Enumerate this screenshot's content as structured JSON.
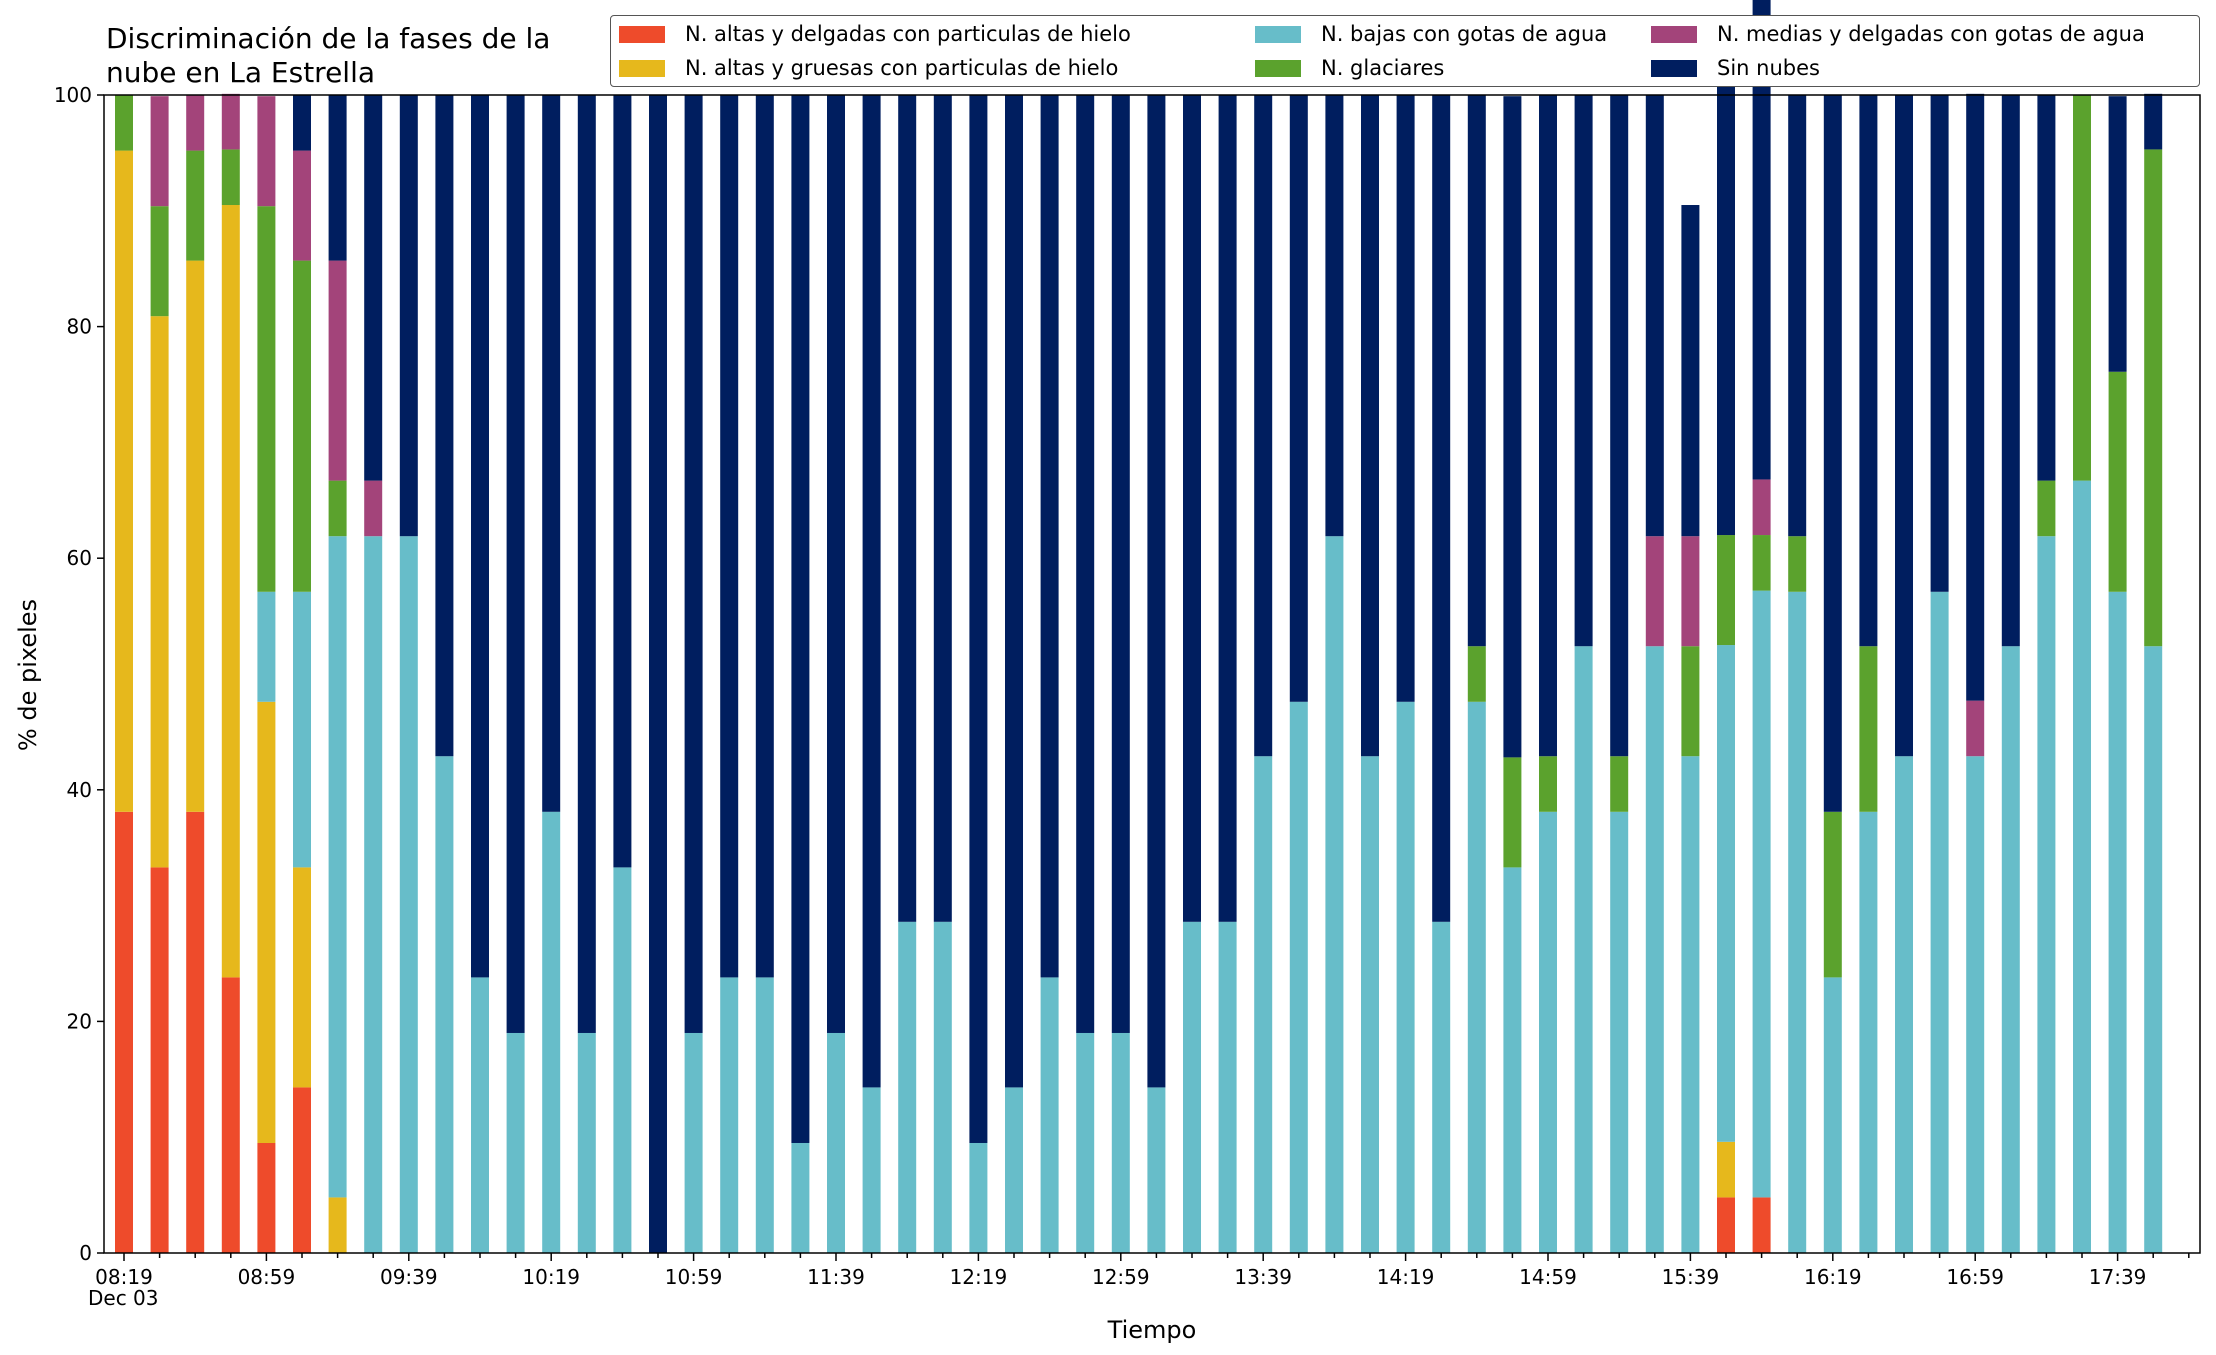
{
  "chart_data": {
    "type": "bar",
    "stacked": true,
    "title_line1": "Discriminación de la fases de la",
    "title_line2": "nube en La Estrella",
    "xlabel": "Tiempo",
    "ylabel": "% de pixeles",
    "date_label": "Dec 03",
    "ylim": [
      0,
      100
    ],
    "yticks": [
      "0",
      "20",
      "40",
      "60",
      "80",
      "100"
    ],
    "xtick_labels": [
      "08:19",
      "08:59",
      "09:39",
      "10:19",
      "10:59",
      "11:39",
      "12:19",
      "12:59",
      "13:39",
      "14:19",
      "14:59",
      "15:39",
      "16:19",
      "16:59",
      "17:39"
    ],
    "grid": false,
    "legend_position": "top-right",
    "series": [
      {
        "name": "N. altas y delgadas con particulas de hielo",
        "color": "#ee4b2b",
        "values": [
          38.1,
          33.3,
          38.1,
          23.8,
          9.5,
          14.3,
          0,
          0,
          0,
          0,
          0,
          0,
          0,
          0,
          0,
          0,
          0,
          0,
          0,
          0,
          0,
          0,
          0,
          0,
          0,
          0,
          0,
          0,
          0,
          0,
          0,
          0,
          0,
          0,
          0,
          0,
          0,
          0,
          0,
          0,
          0,
          0,
          0,
          0,
          0,
          4.8,
          4.8,
          0,
          0,
          0,
          0,
          0,
          0,
          0,
          0,
          0,
          0,
          0
        ]
      },
      {
        "name": "N. altas y gruesas con particulas de hielo",
        "color": "#e6b81c",
        "values": [
          57.1,
          47.6,
          47.6,
          66.7,
          38.1,
          19.0,
          4.8,
          0,
          0,
          0,
          0,
          0,
          0,
          0,
          0,
          0,
          0,
          0,
          0,
          0,
          0,
          0,
          0,
          0,
          0,
          0,
          0,
          0,
          0,
          0,
          0,
          0,
          0,
          0,
          0,
          0,
          0,
          0,
          0,
          0,
          0,
          0,
          0,
          0,
          0,
          4.8,
          0,
          0,
          0,
          0,
          0,
          0,
          0,
          0,
          0,
          0,
          0,
          0
        ]
      },
      {
        "name": "N. bajas con gotas de agua",
        "color": "#67bdc9",
        "values": [
          0,
          0,
          0,
          0,
          9.5,
          23.8,
          57.1,
          61.9,
          61.9,
          42.9,
          23.8,
          19.0,
          38.1,
          19.0,
          33.3,
          0,
          19.0,
          23.8,
          23.8,
          9.5,
          19.0,
          14.3,
          28.6,
          28.6,
          9.5,
          14.3,
          23.8,
          19.0,
          19.0,
          14.3,
          28.6,
          28.6,
          42.9,
          47.6,
          61.9,
          42.9,
          47.6,
          28.6,
          47.6,
          33.3,
          38.1,
          52.4,
          38.1,
          52.4,
          42.9,
          42.9,
          52.4,
          57.1,
          23.8,
          38.1,
          42.9,
          57.1,
          42.9,
          52.4,
          61.9,
          66.7,
          57.1,
          52.4
        ]
      },
      {
        "name": "N. glaciares",
        "color": "#5ba22d",
        "values": [
          4.8,
          9.5,
          9.5,
          4.8,
          33.3,
          28.6,
          4.8,
          0,
          0,
          0,
          0,
          0,
          0,
          0,
          0,
          0,
          0,
          0,
          0,
          0,
          0,
          0,
          0,
          0,
          0,
          0,
          0,
          0,
          0,
          0,
          0,
          0,
          0,
          0,
          0,
          0,
          0,
          0,
          4.8,
          9.5,
          4.8,
          0,
          4.8,
          0,
          9.5,
          9.5,
          4.8,
          4.8,
          14.3,
          14.3,
          0,
          0,
          0,
          0,
          4.8,
          33.3,
          19.0,
          42.9
        ]
      },
      {
        "name": "N. medias y delgadas con gotas de agua",
        "color": "#a3447a",
        "values": [
          0,
          9.5,
          4.8,
          4.8,
          9.5,
          9.5,
          19.0,
          4.8,
          0,
          0,
          0,
          0,
          0,
          0,
          0,
          0,
          0,
          0,
          0,
          0,
          0,
          0,
          0,
          0,
          0,
          0,
          0,
          0,
          0,
          0,
          0,
          0,
          0,
          0,
          0,
          0,
          0,
          0,
          0,
          0,
          0,
          0,
          0,
          9.5,
          9.5,
          0,
          4.8,
          0,
          0,
          0,
          0,
          0,
          4.8,
          0,
          0,
          0,
          0,
          0
        ]
      },
      {
        "name": "Sin nubes",
        "color": "#001e5f",
        "values": [
          0,
          0,
          0,
          0,
          0,
          4.8,
          14.3,
          33.3,
          38.1,
          57.1,
          76.2,
          81.0,
          61.9,
          81.0,
          66.7,
          100,
          81.0,
          76.2,
          76.2,
          90.5,
          81.0,
          85.7,
          71.4,
          71.4,
          90.5,
          85.7,
          76.2,
          81.0,
          81.0,
          85.7,
          71.4,
          71.4,
          57.1,
          52.4,
          38.1,
          57.1,
          52.4,
          71.4,
          47.6,
          57.1,
          57.1,
          47.6,
          57.1,
          38.1,
          28.6,
          42.9,
          42.9,
          38.1,
          61.9,
          47.6,
          57.1,
          42.9,
          52.4,
          47.6,
          33.3,
          0,
          23.8,
          4.8
        ]
      }
    ]
  }
}
